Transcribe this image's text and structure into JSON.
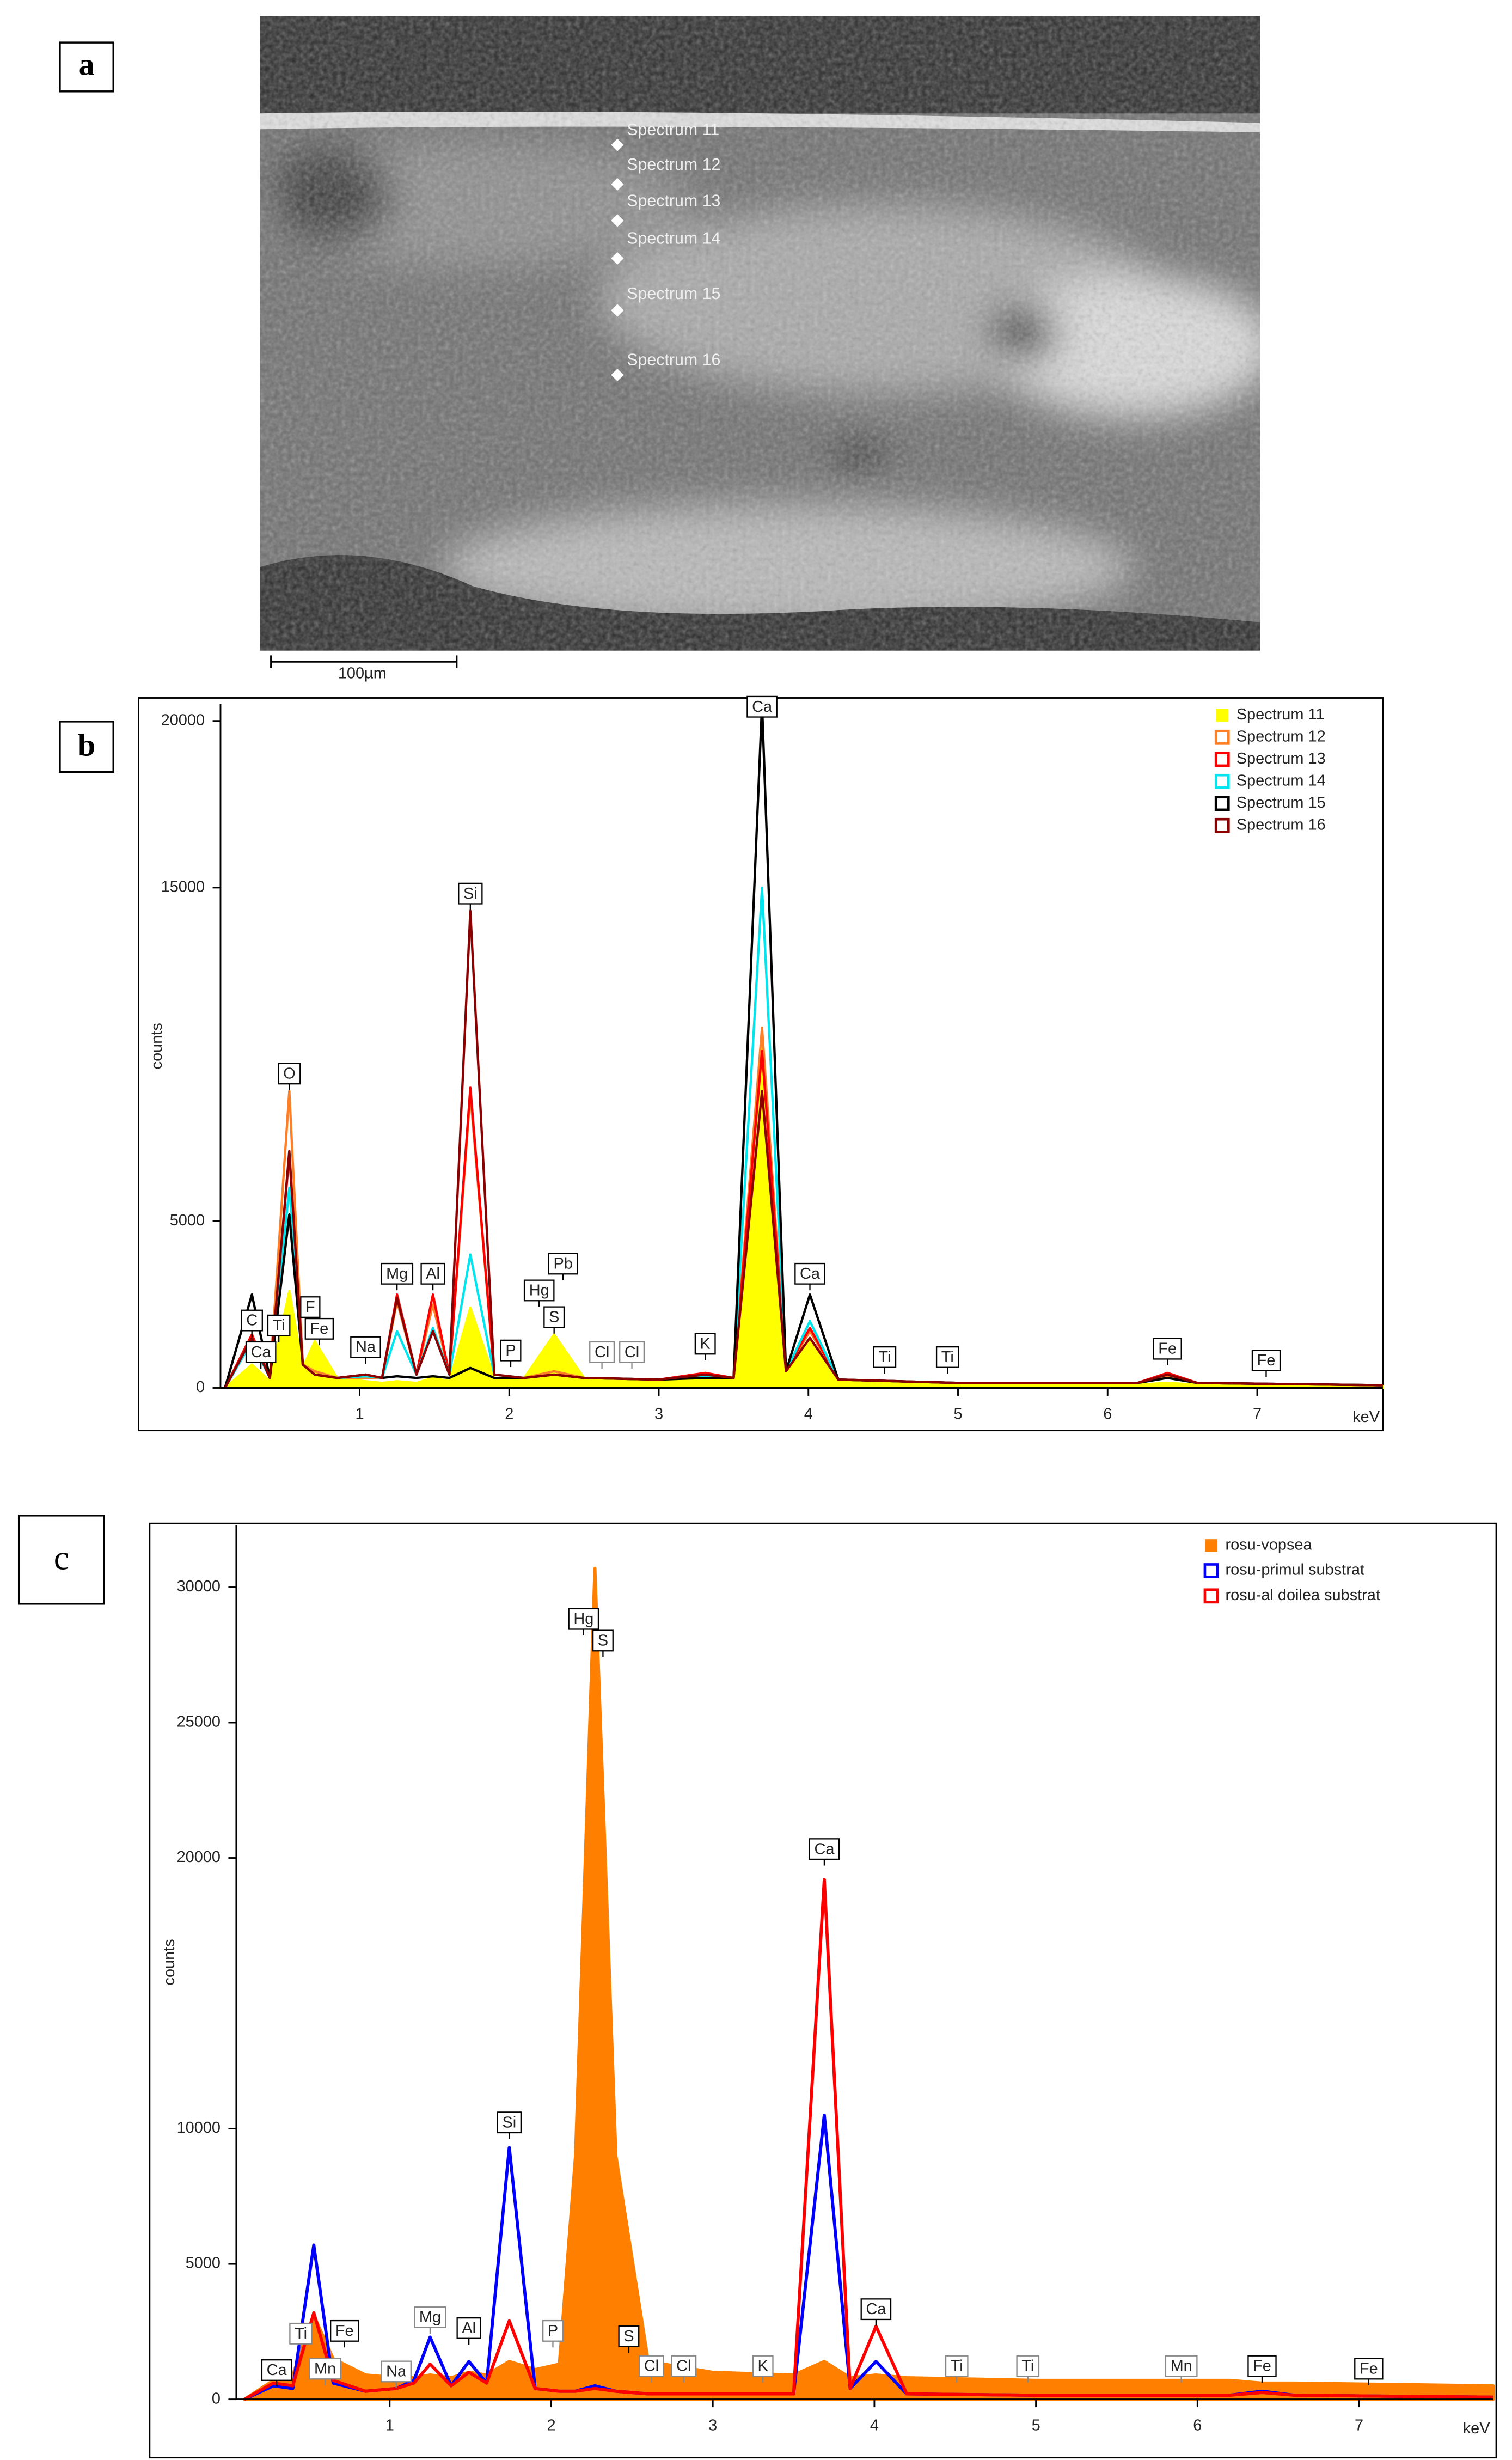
{
  "panels": [
    "a",
    "b",
    "c"
  ],
  "image": {
    "spectra": [
      "Spectrum 11",
      "Spectrum 12",
      "Spectrum 13",
      "Spectrum 14",
      "Spectrum 15",
      "Spectrum 16"
    ],
    "scale_bar": "100µm"
  },
  "chart_data": [
    {
      "type": "line",
      "x_label": "keV",
      "y_label": "counts",
      "xlim": [
        0.07,
        7.84
      ],
      "xticks": [
        1,
        2,
        3,
        4,
        5,
        6,
        7
      ],
      "ylim": [
        0,
        20500
      ],
      "yticks": [
        0,
        5000,
        15000,
        20000
      ],
      "legend": "upper right",
      "x": [
        0.1,
        0.28,
        0.4,
        0.53,
        0.62,
        0.7,
        0.85,
        1.04,
        1.15,
        1.25,
        1.38,
        1.49,
        1.6,
        1.74,
        1.9,
        2.1,
        2.3,
        2.5,
        3.0,
        3.31,
        3.5,
        3.69,
        3.85,
        4.01,
        4.2,
        5.0,
        6.2,
        6.4,
        6.6,
        7.84
      ],
      "series": [
        {
          "name": "Spectrum 11",
          "color": "#ffff00",
          "fill": true,
          "values": [
            0,
            700,
            200,
            2900,
            600,
            1400,
            300,
            200,
            150,
            200,
            150,
            300,
            200,
            2400,
            300,
            300,
            1600,
            300,
            200,
            300,
            300,
            10400,
            500,
            1500,
            200,
            150,
            100,
            150,
            100,
            50
          ]
        },
        {
          "name": "Spectrum 12",
          "color": "#ff7f27",
          "fill": false,
          "values": [
            0,
            1600,
            300,
            8900,
            700,
            500,
            300,
            300,
            300,
            2600,
            400,
            2500,
            400,
            8800,
            400,
            300,
            500,
            300,
            250,
            400,
            300,
            10800,
            500,
            1700,
            250,
            150,
            150,
            350,
            150,
            80
          ]
        },
        {
          "name": "Spectrum 13",
          "color": "#ff0000",
          "fill": false,
          "values": [
            0,
            1600,
            300,
            7000,
            700,
            400,
            300,
            400,
            300,
            2800,
            400,
            2800,
            400,
            9000,
            400,
            300,
            400,
            300,
            250,
            450,
            300,
            10100,
            500,
            1800,
            250,
            150,
            150,
            450,
            150,
            80
          ]
        },
        {
          "name": "Spectrum 14",
          "color": "#00e5ee",
          "fill": false,
          "values": [
            0,
            1400,
            300,
            6000,
            700,
            400,
            300,
            350,
            300,
            1700,
            400,
            1800,
            400,
            4000,
            400,
            300,
            400,
            300,
            250,
            350,
            300,
            15000,
            500,
            2000,
            250,
            150,
            150,
            300,
            150,
            80
          ]
        },
        {
          "name": "Spectrum 15",
          "color": "#000000",
          "fill": false,
          "values": [
            0,
            2800,
            300,
            5200,
            700,
            400,
            300,
            400,
            300,
            350,
            300,
            350,
            300,
            600,
            300,
            300,
            400,
            300,
            250,
            300,
            300,
            20500,
            500,
            2800,
            250,
            150,
            150,
            300,
            150,
            80
          ]
        },
        {
          "name": "Spectrum 16",
          "color": "#8b0000",
          "fill": false,
          "values": [
            0,
            1500,
            300,
            7100,
            700,
            400,
            300,
            400,
            300,
            2700,
            400,
            1700,
            400,
            14300,
            400,
            300,
            400,
            300,
            250,
            400,
            300,
            8900,
            500,
            1500,
            250,
            150,
            150,
            400,
            150,
            80
          ]
        }
      ],
      "annotations": [
        {
          "text": "C",
          "x": 0.28,
          "y": 2000,
          "color": "#000"
        },
        {
          "text": "Ca",
          "x": 0.34,
          "y": 1050,
          "color": "#000"
        },
        {
          "text": "Ti",
          "x": 0.46,
          "y": 1850,
          "color": "#000"
        },
        {
          "text": "O",
          "x": 0.53,
          "y": 9400,
          "color": "#000"
        },
        {
          "text": "F",
          "x": 0.67,
          "y": 2400,
          "color": "#000"
        },
        {
          "text": "Fe",
          "x": 0.73,
          "y": 1750,
          "color": "#000"
        },
        {
          "text": "Na",
          "x": 1.04,
          "y": 1200,
          "color": "#000"
        },
        {
          "text": "Mg",
          "x": 1.25,
          "y": 3400,
          "color": "#000"
        },
        {
          "text": "Al",
          "x": 1.49,
          "y": 3400,
          "color": "#000"
        },
        {
          "text": "Si",
          "x": 1.74,
          "y": 14800,
          "color": "#000"
        },
        {
          "text": "P",
          "x": 2.01,
          "y": 1100,
          "color": "#000"
        },
        {
          "text": "Hg",
          "x": 2.2,
          "y": 2900,
          "color": "#000"
        },
        {
          "text": "S",
          "x": 2.3,
          "y": 2100,
          "color": "#000"
        },
        {
          "text": "Pb",
          "x": 2.36,
          "y": 3700,
          "color": "#000"
        },
        {
          "text": "Cl",
          "x": 2.62,
          "y": 1050,
          "color": "#888"
        },
        {
          "text": "Cl",
          "x": 2.82,
          "y": 1050,
          "color": "#888"
        },
        {
          "text": "K",
          "x": 3.31,
          "y": 1300,
          "color": "#000"
        },
        {
          "text": "Ca",
          "x": 3.69,
          "y": 20400,
          "color": "#000"
        },
        {
          "text": "Ca",
          "x": 4.01,
          "y": 3400,
          "color": "#000"
        },
        {
          "text": "Ti",
          "x": 4.51,
          "y": 900,
          "color": "#000"
        },
        {
          "text": "Ti",
          "x": 4.93,
          "y": 900,
          "color": "#000"
        },
        {
          "text": "Fe",
          "x": 6.4,
          "y": 1150,
          "color": "#000"
        },
        {
          "text": "Fe",
          "x": 7.06,
          "y": 800,
          "color": "#000"
        }
      ]
    },
    {
      "type": "line",
      "x_label": "keV",
      "y_label": "counts",
      "xlim": [
        0.05,
        7.83
      ],
      "xticks": [
        1,
        2,
        3,
        4,
        5,
        6,
        7
      ],
      "ylim": [
        0,
        32300
      ],
      "yticks": [
        0,
        5000,
        10000,
        20000,
        25000,
        30000
      ],
      "legend": "upper right",
      "x": [
        0.1,
        0.28,
        0.4,
        0.53,
        0.65,
        0.85,
        1.04,
        1.15,
        1.25,
        1.38,
        1.49,
        1.6,
        1.74,
        1.9,
        2.05,
        2.15,
        2.27,
        2.4,
        2.6,
        3.0,
        3.5,
        3.69,
        3.85,
        4.01,
        4.2,
        5.0,
        6.2,
        6.4,
        6.6,
        7.83
      ],
      "series": [
        {
          "name": "rosu-vopsea",
          "color": "#ff8000",
          "fill": true,
          "values": [
            0,
            700,
            900,
            3100,
            1500,
            900,
            800,
            800,
            900,
            800,
            1000,
            900,
            1400,
            1100,
            1300,
            9000,
            30700,
            9000,
            1400,
            1000,
            900,
            1400,
            800,
            900,
            800,
            700,
            700,
            600,
            600,
            500
          ]
        },
        {
          "name": "rosu-primul substrat",
          "color": "#0000ff",
          "fill": false,
          "values": [
            0,
            500,
            400,
            5700,
            600,
            300,
            400,
            700,
            2300,
            500,
            1400,
            600,
            9300,
            400,
            300,
            300,
            500,
            300,
            200,
            200,
            200,
            10500,
            400,
            1400,
            200,
            150,
            150,
            300,
            150,
            80
          ]
        },
        {
          "name": "rosu-al doilea substrat",
          "color": "#ff0000",
          "fill": false,
          "values": [
            0,
            600,
            500,
            3200,
            700,
            300,
            400,
            600,
            1300,
            500,
            1000,
            600,
            2900,
            400,
            300,
            300,
            400,
            300,
            200,
            200,
            200,
            19200,
            400,
            2700,
            200,
            150,
            150,
            250,
            150,
            80
          ]
        }
      ],
      "annotations": [
        {
          "text": "Ca",
          "x": 0.3,
          "y": 1050,
          "color": "#000"
        },
        {
          "text": "Ti",
          "x": 0.45,
          "y": 2400,
          "color": "#888"
        },
        {
          "text": "Mn",
          "x": 0.6,
          "y": 1100,
          "color": "#888"
        },
        {
          "text": "Fe",
          "x": 0.72,
          "y": 2500,
          "color": "#000"
        },
        {
          "text": "Na",
          "x": 1.04,
          "y": 1000,
          "color": "#888"
        },
        {
          "text": "Mg",
          "x": 1.25,
          "y": 3000,
          "color": "#888"
        },
        {
          "text": "Al",
          "x": 1.49,
          "y": 2600,
          "color": "#000"
        },
        {
          "text": "Si",
          "x": 1.74,
          "y": 10200,
          "color": "#000"
        },
        {
          "text": "P",
          "x": 2.01,
          "y": 2500,
          "color": "#888"
        },
        {
          "text": "Hg",
          "x": 2.2,
          "y": 28800,
          "color": "#000"
        },
        {
          "text": "S",
          "x": 2.32,
          "y": 28000,
          "color": "#000"
        },
        {
          "text": "S",
          "x": 2.48,
          "y": 2300,
          "color": "#000"
        },
        {
          "text": "Cl",
          "x": 2.62,
          "y": 1200,
          "color": "#888"
        },
        {
          "text": "Cl",
          "x": 2.82,
          "y": 1200,
          "color": "#888"
        },
        {
          "text": "K",
          "x": 3.31,
          "y": 1200,
          "color": "#888"
        },
        {
          "text": "Ca",
          "x": 3.69,
          "y": 20300,
          "color": "#000"
        },
        {
          "text": "Ca",
          "x": 4.01,
          "y": 3300,
          "color": "#000"
        },
        {
          "text": "Ti",
          "x": 4.51,
          "y": 1200,
          "color": "#888"
        },
        {
          "text": "Ti",
          "x": 4.95,
          "y": 1200,
          "color": "#888"
        },
        {
          "text": "Mn",
          "x": 5.9,
          "y": 1200,
          "color": "#888"
        },
        {
          "text": "Fe",
          "x": 6.4,
          "y": 1200,
          "color": "#000"
        },
        {
          "text": "Fe",
          "x": 7.06,
          "y": 1100,
          "color": "#000"
        }
      ]
    }
  ]
}
